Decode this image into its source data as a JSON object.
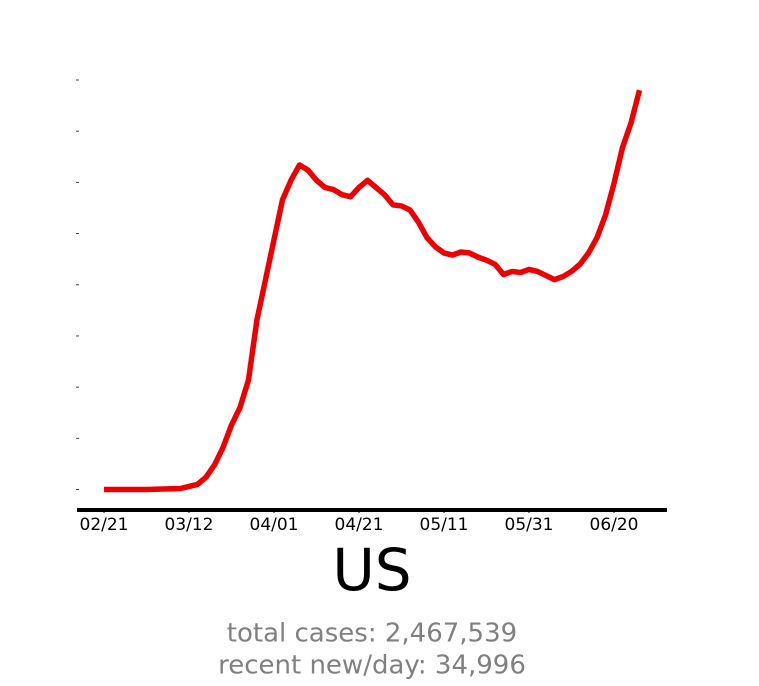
{
  "chart_data": {
    "type": "line",
    "title": "US",
    "subtitle_lines": [
      "total cases: 2,467,539",
      "recent new/day: 34,996"
    ],
    "color": "#ee0000",
    "x": [
      0,
      10,
      18,
      20,
      22,
      24,
      26,
      28,
      30,
      32,
      34,
      36,
      38,
      40,
      42,
      44,
      46,
      48,
      50,
      52,
      54,
      56,
      58,
      60,
      62,
      64,
      66,
      68,
      70,
      72,
      74,
      76,
      78,
      80,
      82,
      84,
      86,
      88,
      90,
      92,
      94,
      96,
      98,
      100,
      102,
      104,
      106,
      108,
      110,
      112,
      114,
      116,
      118,
      120,
      122,
      124,
      126
    ],
    "values": [
      0,
      0,
      100,
      300,
      500,
      1200,
      2400,
      4100,
      6300,
      8000,
      10700,
      16600,
      20500,
      24400,
      28300,
      30200,
      31700,
      31200,
      30200,
      29500,
      29300,
      28800,
      28600,
      29500,
      30200,
      29500,
      28800,
      27800,
      27700,
      27300,
      26100,
      24600,
      23700,
      23100,
      22900,
      23200,
      23100,
      22700,
      22400,
      22000,
      21000,
      21300,
      21200,
      21500,
      21300,
      20900,
      20500,
      20800,
      21300,
      22000,
      23100,
      24600,
      26800,
      29900,
      33400,
      35800,
      39000
    ],
    "xlim": [
      -6,
      132
    ],
    "xticks": [
      {
        "value": 0,
        "label": "02/21"
      },
      {
        "value": 20,
        "label": "03/12"
      },
      {
        "value": 40,
        "label": "04/01"
      },
      {
        "value": 60,
        "label": "04/21"
      },
      {
        "value": 80,
        "label": "05/11"
      },
      {
        "value": 100,
        "label": "05/31"
      },
      {
        "value": 120,
        "label": "06/20"
      }
    ],
    "ylim": [
      -2000,
      40000
    ],
    "yticks": [
      0,
      5000,
      10000,
      15000,
      20000,
      25000,
      30000,
      35000,
      40000
    ]
  }
}
